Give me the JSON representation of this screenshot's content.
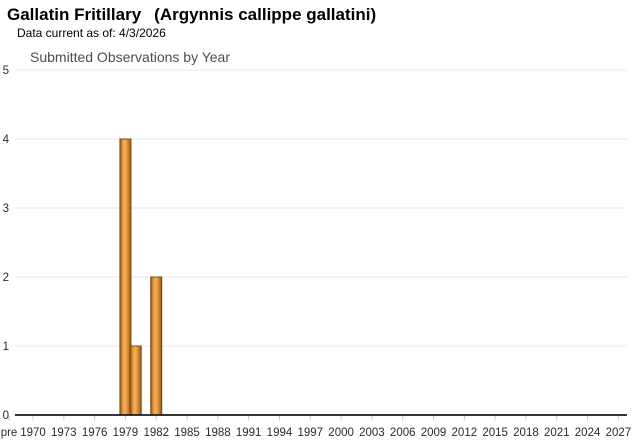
{
  "header": {
    "common_name": "Gallatin Fritillary",
    "scientific_name": "(Argynnis callippe gallatini)",
    "data_current_label": "Data current as of: 4/3/2026"
  },
  "chart_data": {
    "type": "bar",
    "title": "Submitted Observations by Year",
    "xlabel": "",
    "ylabel": "",
    "series_name": "Submitted Observations",
    "categories": [
      1979,
      1980,
      1982
    ],
    "values": [
      4,
      1,
      2
    ],
    "ylim": [
      0,
      5
    ],
    "y_ticks": [
      0,
      1,
      2,
      3,
      4,
      5
    ],
    "x_tick_labels": [
      "pre",
      "1970",
      "1973",
      "1976",
      "1979",
      "1982",
      "1985",
      "1988",
      "1991",
      "1994",
      "1997",
      "2000",
      "2003",
      "2006",
      "2009",
      "2012",
      "2015",
      "2018",
      "2021",
      "2024",
      "2027"
    ],
    "x_range_years": [
      1970,
      2027
    ],
    "grid": true,
    "legend": "none",
    "colors": {
      "bar_center": "#f6b062",
      "bar_mid": "#ec9c45",
      "bar_edge": "#8a5210",
      "bar_border": "#7a4a10",
      "gridline": "#e8e8e8",
      "axis_line": "#1a1a1a",
      "tick_label": "#2b2b2b",
      "chart_title": "#4d4d4d"
    }
  }
}
